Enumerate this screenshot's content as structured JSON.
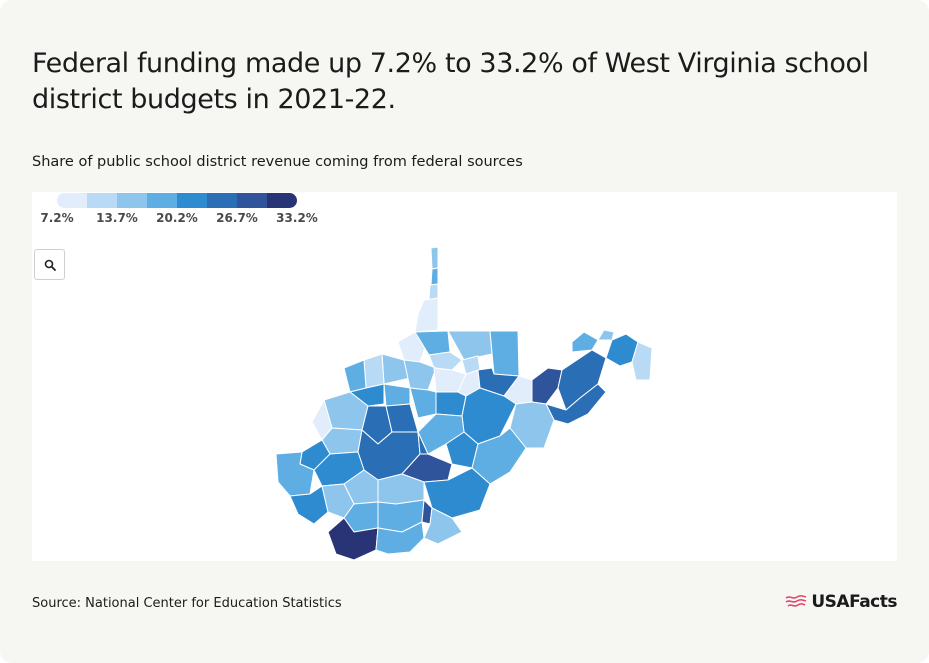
{
  "header": {
    "title": "Federal funding made up 7.2% to 33.2% of West Virginia school district budgets in 2021-22.",
    "subtitle": "Share of public school district revenue coming from federal sources"
  },
  "legend": {
    "colors": [
      "#e1edfb",
      "#b9daf4",
      "#8ec5ec",
      "#5eaee3",
      "#2f8bd0",
      "#2a6fb6",
      "#2f549c",
      "#283476"
    ],
    "ticks": [
      "7.2%",
      "13.7%",
      "20.2%",
      "26.7%",
      "33.2%"
    ]
  },
  "toolbar": {
    "zoom_icon": "search-icon"
  },
  "map": {
    "state": "West Virginia",
    "regions_fill_levels": [
      0,
      1,
      2,
      3,
      4,
      5,
      6,
      7
    ]
  },
  "footer": {
    "source": "Source: National Center for Education Statistics",
    "logo_text": "USAFacts",
    "logo_color": "#e4476c"
  }
}
